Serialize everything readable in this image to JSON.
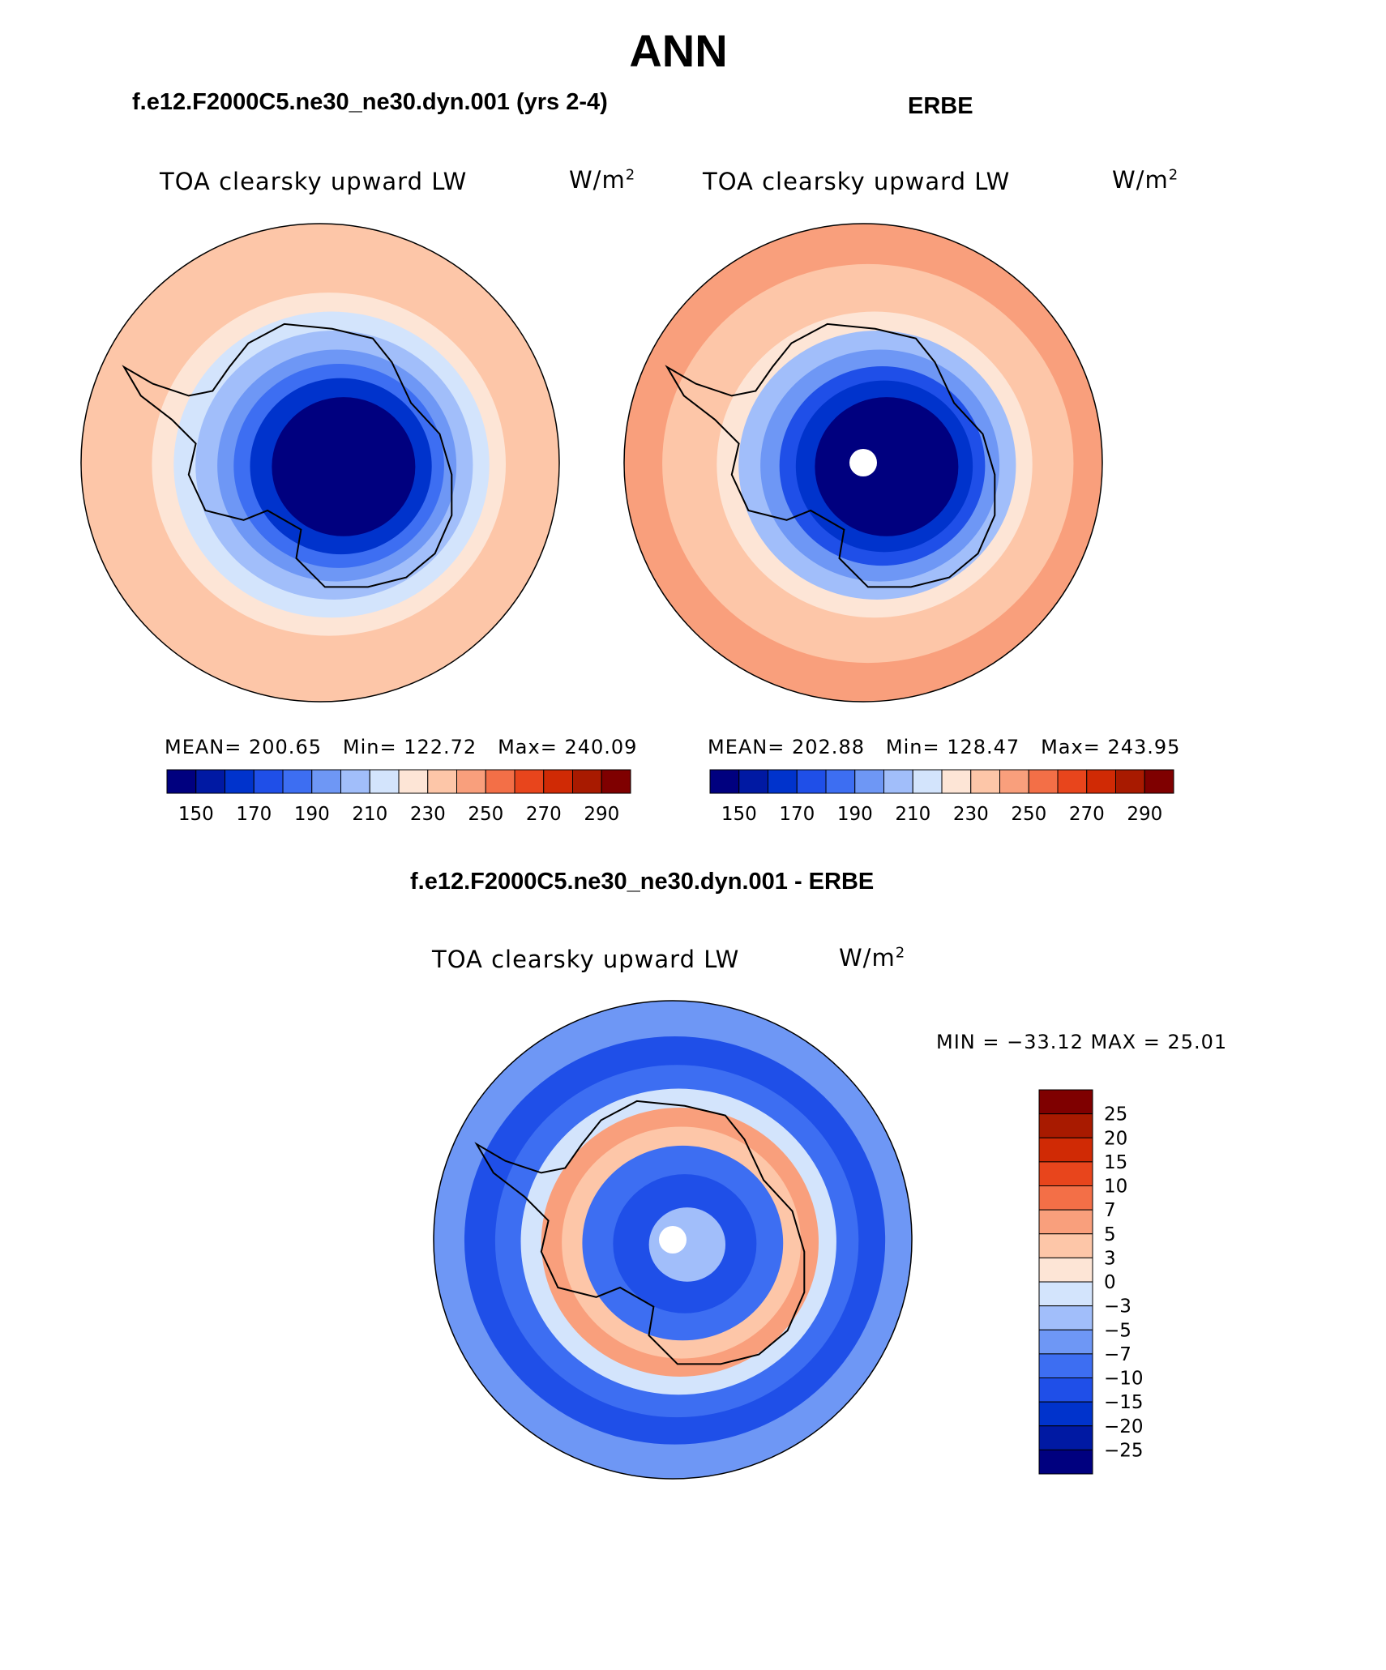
{
  "figure": {
    "title": "ANN"
  },
  "chart_data": [
    {
      "type": "heatmap",
      "projection": "south polar stereographic",
      "title": "f.e12.F2000C5.ne30_ne30.dyn.001 (yrs 2-4)",
      "variable": "TOA clearsky upward LW",
      "units_base": "W/m",
      "units_exp": "2",
      "stats": {
        "mean_label": "MEAN=",
        "mean": "200.65",
        "min_label": "Min=",
        "min": "122.72",
        "max_label": "Max=",
        "max": "240.09"
      },
      "colorbar": {
        "orientation": "horizontal",
        "levels": [
          140,
          150,
          160,
          170,
          180,
          190,
          200,
          210,
          220,
          230,
          240,
          250,
          260,
          270,
          280,
          290
        ],
        "tick_labels": [
          "150",
          "170",
          "190",
          "210",
          "230",
          "250",
          "270",
          "290"
        ],
        "colors": [
          "#00007f",
          "#0019a3",
          "#0033cc",
          "#1f4fe8",
          "#3d6ef2",
          "#6e97f5",
          "#a1befa",
          "#d3e4fc",
          "#fde5d6",
          "#fdc6a8",
          "#f99f7c",
          "#f36f47",
          "#e8451c",
          "#d02a05",
          "#a81a00",
          "#7f0000"
        ]
      },
      "field_rings": [
        {
          "value": 236,
          "radius_frac": 1.0
        },
        {
          "value": 232,
          "radius_frac": 0.85
        },
        {
          "value": 225,
          "radius_frac": 0.74
        },
        {
          "value": 215,
          "radius_frac": 0.66
        },
        {
          "value": 205,
          "radius_frac": 0.58
        },
        {
          "value": 195,
          "radius_frac": 0.5
        },
        {
          "value": 185,
          "radius_frac": 0.44
        },
        {
          "value": 165,
          "radius_frac": 0.38
        },
        {
          "value": 125,
          "radius_frac": 0.3
        }
      ]
    },
    {
      "type": "heatmap",
      "projection": "south polar stereographic",
      "title": "ERBE",
      "variable": "TOA clearsky upward LW",
      "units_base": "W/m",
      "units_exp": "2",
      "stats": {
        "mean_label": "MEAN=",
        "mean": "202.88",
        "min_label": "Min=",
        "min": "128.47",
        "max_label": "Max=",
        "max": "243.95"
      },
      "colorbar": {
        "orientation": "horizontal",
        "levels": [
          140,
          150,
          160,
          170,
          180,
          190,
          200,
          210,
          220,
          230,
          240,
          250,
          260,
          270,
          280,
          290
        ],
        "tick_labels": [
          "150",
          "170",
          "190",
          "210",
          "230",
          "250",
          "270",
          "290"
        ],
        "colors": [
          "#00007f",
          "#0019a3",
          "#0033cc",
          "#1f4fe8",
          "#3d6ef2",
          "#6e97f5",
          "#a1befa",
          "#d3e4fc",
          "#fde5d6",
          "#fdc6a8",
          "#f99f7c",
          "#f36f47",
          "#e8451c",
          "#d02a05",
          "#a81a00",
          "#7f0000"
        ]
      },
      "field_rings": [
        {
          "value": 243,
          "radius_frac": 1.0
        },
        {
          "value": 238,
          "radius_frac": 0.86
        },
        {
          "value": 232,
          "radius_frac": 0.76
        },
        {
          "value": 222,
          "radius_frac": 0.66
        },
        {
          "value": 205,
          "radius_frac": 0.58
        },
        {
          "value": 190,
          "radius_frac": 0.5
        },
        {
          "value": 175,
          "radius_frac": 0.43
        },
        {
          "value": 165,
          "radius_frac": 0.37
        },
        {
          "value": 130,
          "radius_frac": 0.3
        }
      ]
    },
    {
      "type": "heatmap",
      "projection": "south polar stereographic",
      "title": "f.e12.F2000C5.ne30_ne30.dyn.001 - ERBE",
      "variable": "TOA clearsky upward LW",
      "units_base": "W/m",
      "units_exp": "2",
      "stats": {
        "label": "MIN = −33.12 MAX =  25.01",
        "min": -33.12,
        "max": 25.01
      },
      "colorbar": {
        "orientation": "vertical",
        "levels": [
          -30,
          -25,
          -20,
          -15,
          -10,
          -7,
          -5,
          -3,
          0,
          3,
          5,
          7,
          10,
          15,
          20,
          25,
          30
        ],
        "tick_labels": [
          "25",
          "20",
          "15",
          "10",
          "7",
          "5",
          "3",
          "0",
          "−3",
          "−5",
          "−7",
          "−10",
          "−15",
          "−20",
          "−25"
        ],
        "colors": [
          "#00007f",
          "#0019a3",
          "#0033cc",
          "#1f4fe8",
          "#3d6ef2",
          "#6e97f5",
          "#a1befa",
          "#d3e4fc",
          "#fde5d6",
          "#fdc6a8",
          "#f99f7c",
          "#f36f47",
          "#e8451c",
          "#d02a05",
          "#a81a00",
          "#7f0000"
        ]
      },
      "field_rings": [
        {
          "value": -6,
          "radius_frac": 1.0
        },
        {
          "value": -12,
          "radius_frac": 0.88
        },
        {
          "value": -8,
          "radius_frac": 0.76
        },
        {
          "value": -2,
          "radius_frac": 0.66
        },
        {
          "value": 6,
          "radius_frac": 0.58
        },
        {
          "value": 3,
          "radius_frac": 0.5
        },
        {
          "value": -8,
          "radius_frac": 0.42
        },
        {
          "value": -12,
          "radius_frac": 0.3
        },
        {
          "value": -5,
          "radius_frac": 0.16
        }
      ]
    }
  ]
}
